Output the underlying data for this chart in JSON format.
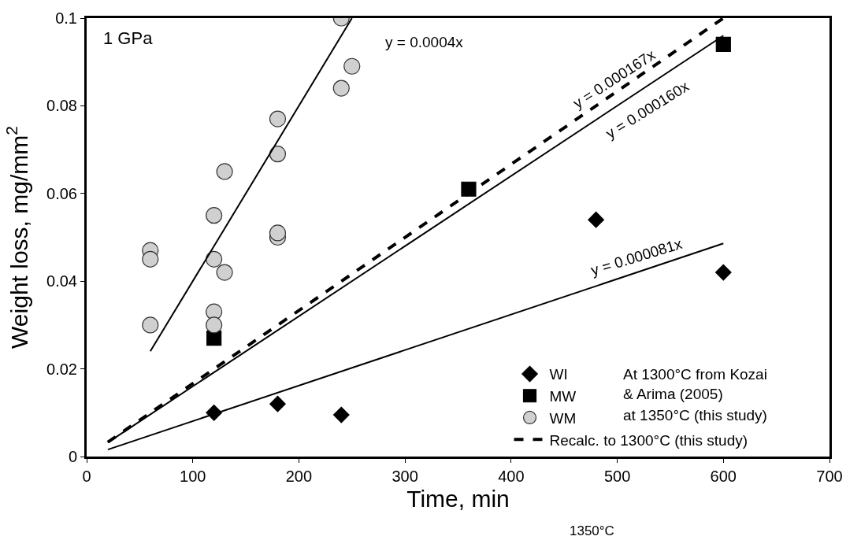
{
  "chart_data": {
    "type": "scatter",
    "xlabel": "Time, min",
    "ylabel": "Weight loss, mg/mm$^{2}$",
    "xlim": [
      0,
      700
    ],
    "ylim": [
      0,
      0.1
    ],
    "xticks": [
      0,
      100,
      200,
      300,
      400,
      500,
      600,
      700
    ],
    "yticks": [
      0,
      0.02,
      0.04,
      0.06,
      0.08,
      0.1
    ],
    "legend": "bottom right",
    "series": [
      {
        "name": "WI",
        "marker": "diamond",
        "color": "#000000",
        "x": [
          120,
          180,
          240,
          480,
          600
        ],
        "values": [
          0.01,
          0.012,
          0.0095,
          0.054,
          0.042
        ]
      },
      {
        "name": "MW",
        "marker": "square",
        "color": "#000000",
        "x": [
          120,
          360,
          600
        ],
        "values": [
          0.027,
          0.061,
          0.094
        ]
      },
      {
        "name": "WM",
        "marker": "circle",
        "color": "#d0d0d0",
        "x": [
          60,
          60,
          60,
          120,
          120,
          120,
          120,
          130,
          130,
          180,
          180,
          180,
          180,
          240,
          240,
          250
        ],
        "values": [
          0.047,
          0.045,
          0.03,
          0.055,
          0.045,
          0.033,
          0.03,
          0.065,
          0.042,
          0.077,
          0.069,
          0.05,
          0.051,
          0.1,
          0.084,
          0.089
        ]
      },
      {
        "name": "Recalc. to 1300°C (this study)",
        "type": "line",
        "line_style": "dashed",
        "color": "#000000",
        "x": [
          20,
          600
        ],
        "values": [
          0.0033,
          0.1
        ]
      },
      {
        "type": "line",
        "line_style": "solid",
        "color": "#000000",
        "x": [
          60,
          250
        ],
        "values": [
          0.024,
          0.1
        ]
      },
      {
        "type": "line",
        "line_style": "solid",
        "color": "#000000",
        "x": [
          20,
          600
        ],
        "values": [
          0.0032,
          0.096
        ]
      },
      {
        "type": "line",
        "line_style": "solid",
        "color": "#000000",
        "x": [
          20,
          600
        ],
        "values": [
          0.0016,
          0.0486
        ]
      }
    ],
    "annotations": [
      "1 GPa",
      "y = 0.0004x",
      "y = 0.000167x",
      "y = 0.000160x",
      "y = 0.000081x",
      "At 1300°C from Kozai\n& Arima (2005)",
      "at 1350°C (this study)",
      "1350°C"
    ]
  }
}
